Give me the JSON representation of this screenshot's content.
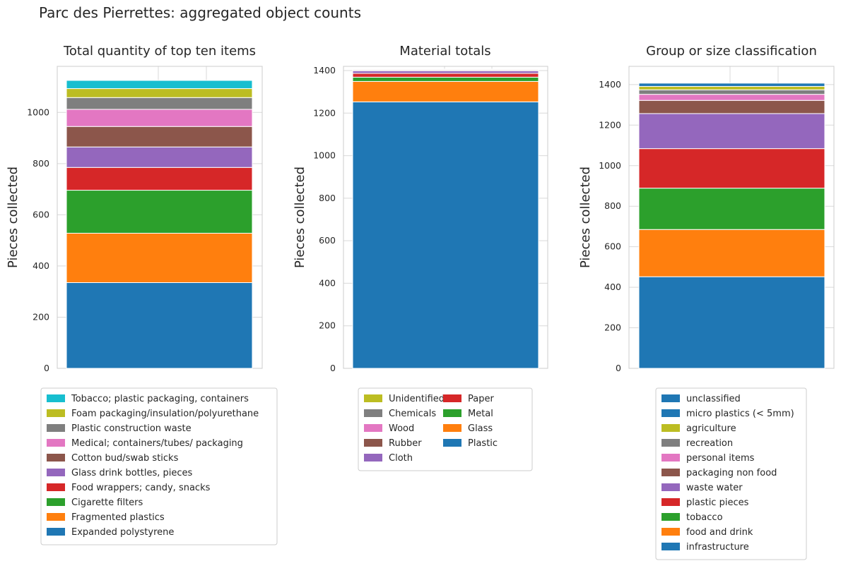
{
  "page": {
    "suptitle": "Parc des Pierrettes: aggregated object counts"
  },
  "chart_data": [
    {
      "type": "bar",
      "stacked": true,
      "title": "Total quantity of top ten items",
      "xlabel": "",
      "ylabel": "Pieces collected",
      "ylim": [
        0,
        1180
      ],
      "yticks": [
        0,
        200,
        400,
        600,
        800,
        1000
      ],
      "grid": true,
      "legend_placement": "below",
      "legend_columns": 1,
      "series": [
        {
          "name": "Expanded polystyrene",
          "value": 335,
          "color": "#1f77b4"
        },
        {
          "name": "Fragmented plastics",
          "value": 193,
          "color": "#ff7f0e"
        },
        {
          "name": "Cigarette filters",
          "value": 168,
          "color": "#2ca02c"
        },
        {
          "name": "Food wrappers; candy, snacks",
          "value": 89,
          "color": "#d62728"
        },
        {
          "name": "Glass drink bottles, pieces",
          "value": 80,
          "color": "#9467bd"
        },
        {
          "name": "Cotton bud/swab sticks",
          "value": 80,
          "color": "#8c564b"
        },
        {
          "name": "Medical; containers/tubes/ packaging",
          "value": 67,
          "color": "#e377c2"
        },
        {
          "name": "Plastic construction waste",
          "value": 46,
          "color": "#7f7f7f"
        },
        {
          "name": "Foam packaging/insulation/polyurethane",
          "value": 35,
          "color": "#bcbd22"
        },
        {
          "name": "Tobacco; plastic packaging, containers",
          "value": 32,
          "color": "#17becf"
        }
      ]
    },
    {
      "type": "bar",
      "stacked": true,
      "title": "Material totals",
      "xlabel": "",
      "ylabel": "Pieces collected",
      "ylim": [
        0,
        1420
      ],
      "yticks": [
        0,
        200,
        400,
        600,
        800,
        1000,
        1200,
        1400
      ],
      "grid": true,
      "legend_placement": "below",
      "legend_columns": 2,
      "series": [
        {
          "name": "Plastic",
          "value": 1253,
          "color": "#1f77b4"
        },
        {
          "name": "Glass",
          "value": 96,
          "color": "#ff7f0e"
        },
        {
          "name": "Metal",
          "value": 20,
          "color": "#2ca02c"
        },
        {
          "name": "Paper",
          "value": 18,
          "color": "#d62728"
        },
        {
          "name": "Cloth",
          "value": 12,
          "color": "#9467bd"
        },
        {
          "name": "Rubber",
          "value": 4,
          "color": "#8c564b"
        },
        {
          "name": "Wood",
          "value": 2,
          "color": "#e377c2"
        },
        {
          "name": "Chemicals",
          "value": 1,
          "color": "#7f7f7f"
        },
        {
          "name": "Unidentified",
          "value": 1,
          "color": "#bcbd22"
        }
      ]
    },
    {
      "type": "bar",
      "stacked": true,
      "title": "Group or size classification",
      "xlabel": "",
      "ylabel": "Pieces collected",
      "ylim": [
        0,
        1490
      ],
      "yticks": [
        0,
        200,
        400,
        600,
        800,
        1000,
        1200,
        1400
      ],
      "grid": true,
      "legend_placement": "below",
      "legend_columns": 1,
      "series": [
        {
          "name": "infrastructure",
          "value": 452,
          "color": "#1f77b4"
        },
        {
          "name": "food and drink",
          "value": 233,
          "color": "#ff7f0e"
        },
        {
          "name": "tobacco",
          "value": 204,
          "color": "#2ca02c"
        },
        {
          "name": "plastic pieces",
          "value": 195,
          "color": "#d62728"
        },
        {
          "name": "waste water",
          "value": 173,
          "color": "#9467bd"
        },
        {
          "name": "packaging non food",
          "value": 65,
          "color": "#8c564b"
        },
        {
          "name": "personal items",
          "value": 30,
          "color": "#e377c2"
        },
        {
          "name": "recreation",
          "value": 22,
          "color": "#7f7f7f"
        },
        {
          "name": "agriculture",
          "value": 17,
          "color": "#bcbd22"
        },
        {
          "name": "micro plastics (< 5mm)",
          "value": 16,
          "color": "#1f77b4"
        },
        {
          "name": "unclassified",
          "value": 0,
          "color": "#1f77b4"
        }
      ]
    }
  ]
}
